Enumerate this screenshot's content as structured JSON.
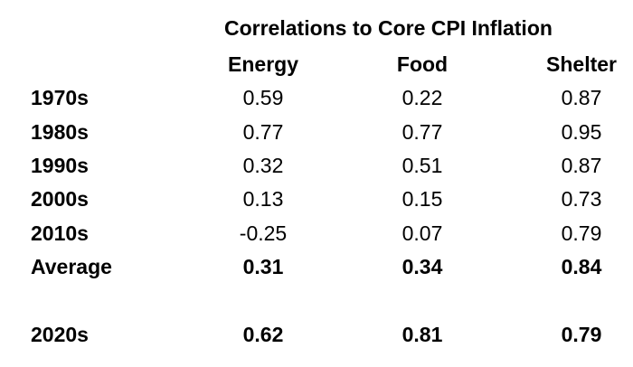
{
  "chart_data": {
    "type": "table",
    "title": "Correlations to Core CPI Inflation",
    "columns": [
      "Energy",
      "Food",
      "Shelter"
    ],
    "rows": [
      {
        "label": "1970s",
        "values": [
          "0.59",
          "0.22",
          "0.87"
        ],
        "bold": false
      },
      {
        "label": "1980s",
        "values": [
          "0.77",
          "0.77",
          "0.95"
        ],
        "bold": false
      },
      {
        "label": "1990s",
        "values": [
          "0.32",
          "0.51",
          "0.87"
        ],
        "bold": false
      },
      {
        "label": "2000s",
        "values": [
          "0.13",
          "0.15",
          "0.73"
        ],
        "bold": false
      },
      {
        "label": "2010s",
        "values": [
          "-0.25",
          "0.07",
          "0.79"
        ],
        "bold": false
      },
      {
        "label": "Average",
        "values": [
          "0.31",
          "0.34",
          "0.84"
        ],
        "bold": true
      },
      {
        "label": "2020s",
        "values": [
          "0.62",
          "0.81",
          "0.79"
        ],
        "bold": true
      }
    ]
  }
}
